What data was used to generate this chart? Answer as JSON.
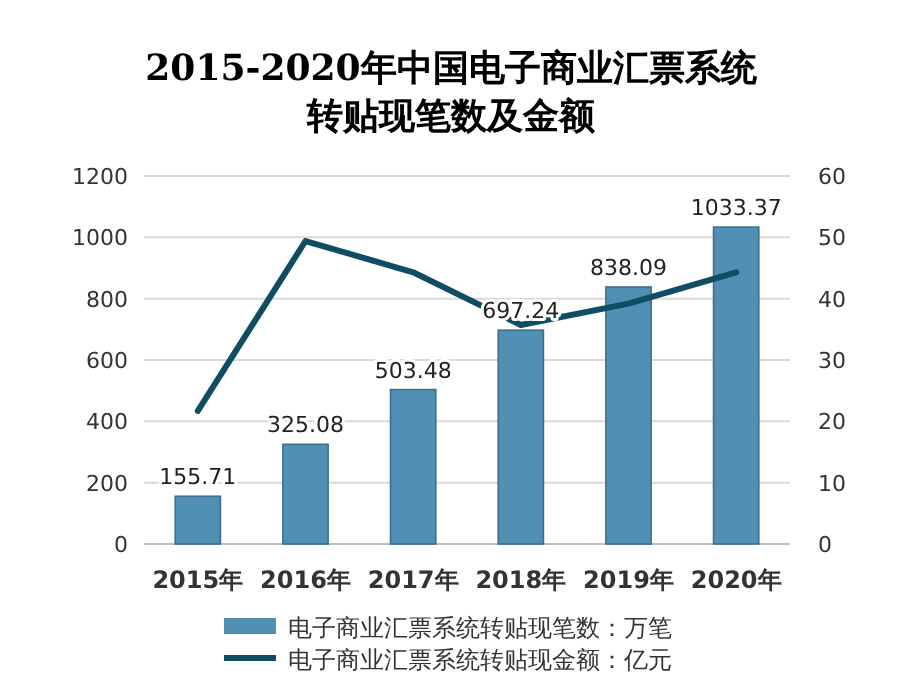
{
  "chart_data": {
    "type": "bar",
    "title": "2015-2020年中国电子商业汇票系统转贴现笔数及金额",
    "categories": [
      "2015年",
      "2016年",
      "2017年",
      "2018年",
      "2019年",
      "2020年"
    ],
    "series": [
      {
        "name": "电子商业汇票系统转贴现笔数：万笔",
        "color": "#4f90b4",
        "values": [
          155.71,
          325.08,
          503.48,
          697.24,
          838.09,
          1033.37
        ],
        "data_labels": true
      },
      {
        "name": "电子商业汇票系统转贴现金额：亿元",
        "type": "line",
        "axis": "y2",
        "color": "#0e4d64",
        "values": [
          21.7,
          49.4,
          44.3,
          35.7,
          39.2,
          44.3
        ]
      }
    ],
    "ylim": [
      0,
      1200
    ],
    "yticks": [
      0,
      200,
      400,
      600,
      800,
      1000,
      1200
    ],
    "y2lim": [
      0,
      60
    ],
    "y2ticks": [
      0,
      10,
      20,
      30,
      40,
      50,
      60
    ],
    "grid": "y",
    "legend": "bottom",
    "line_style": "solid",
    "marker": "none"
  }
}
